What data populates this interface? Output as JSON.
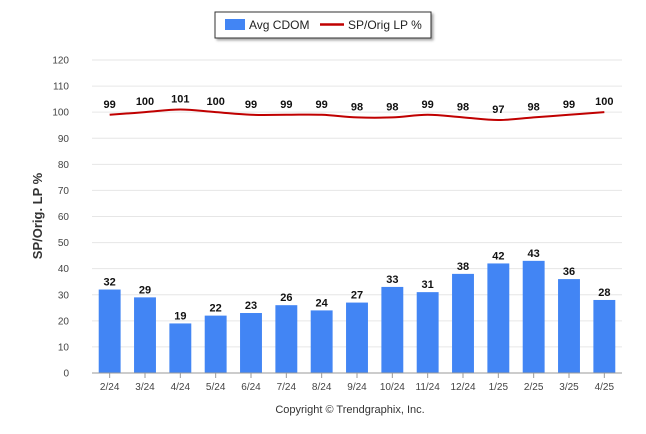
{
  "chart_data": {
    "type": "bar",
    "categories": [
      "2/24",
      "3/24",
      "4/24",
      "5/24",
      "6/24",
      "7/24",
      "8/24",
      "9/24",
      "10/24",
      "11/24",
      "12/24",
      "1/25",
      "2/25",
      "3/25",
      "4/25"
    ],
    "series": [
      {
        "name": "Avg CDOM",
        "type": "bar",
        "color": "#4285f4",
        "values": [
          32,
          29,
          19,
          22,
          23,
          26,
          24,
          27,
          33,
          31,
          38,
          42,
          43,
          36,
          28
        ]
      },
      {
        "name": "SP/Orig LP %",
        "type": "line",
        "color": "#c00000",
        "values": [
          99,
          100,
          101,
          100,
          99,
          99,
          99,
          98,
          98,
          99,
          98,
          97,
          98,
          99,
          100
        ]
      }
    ],
    "ylabel": "SP/Orig. LP %",
    "xlabel": "",
    "ylim": [
      0,
      120
    ],
    "yticks": [
      0,
      10,
      20,
      30,
      40,
      50,
      60,
      70,
      80,
      90,
      100,
      110,
      120
    ],
    "grid": true,
    "legend": "top-center"
  },
  "footer": {
    "copyright": "Copyright © Trendgraphix, Inc."
  }
}
